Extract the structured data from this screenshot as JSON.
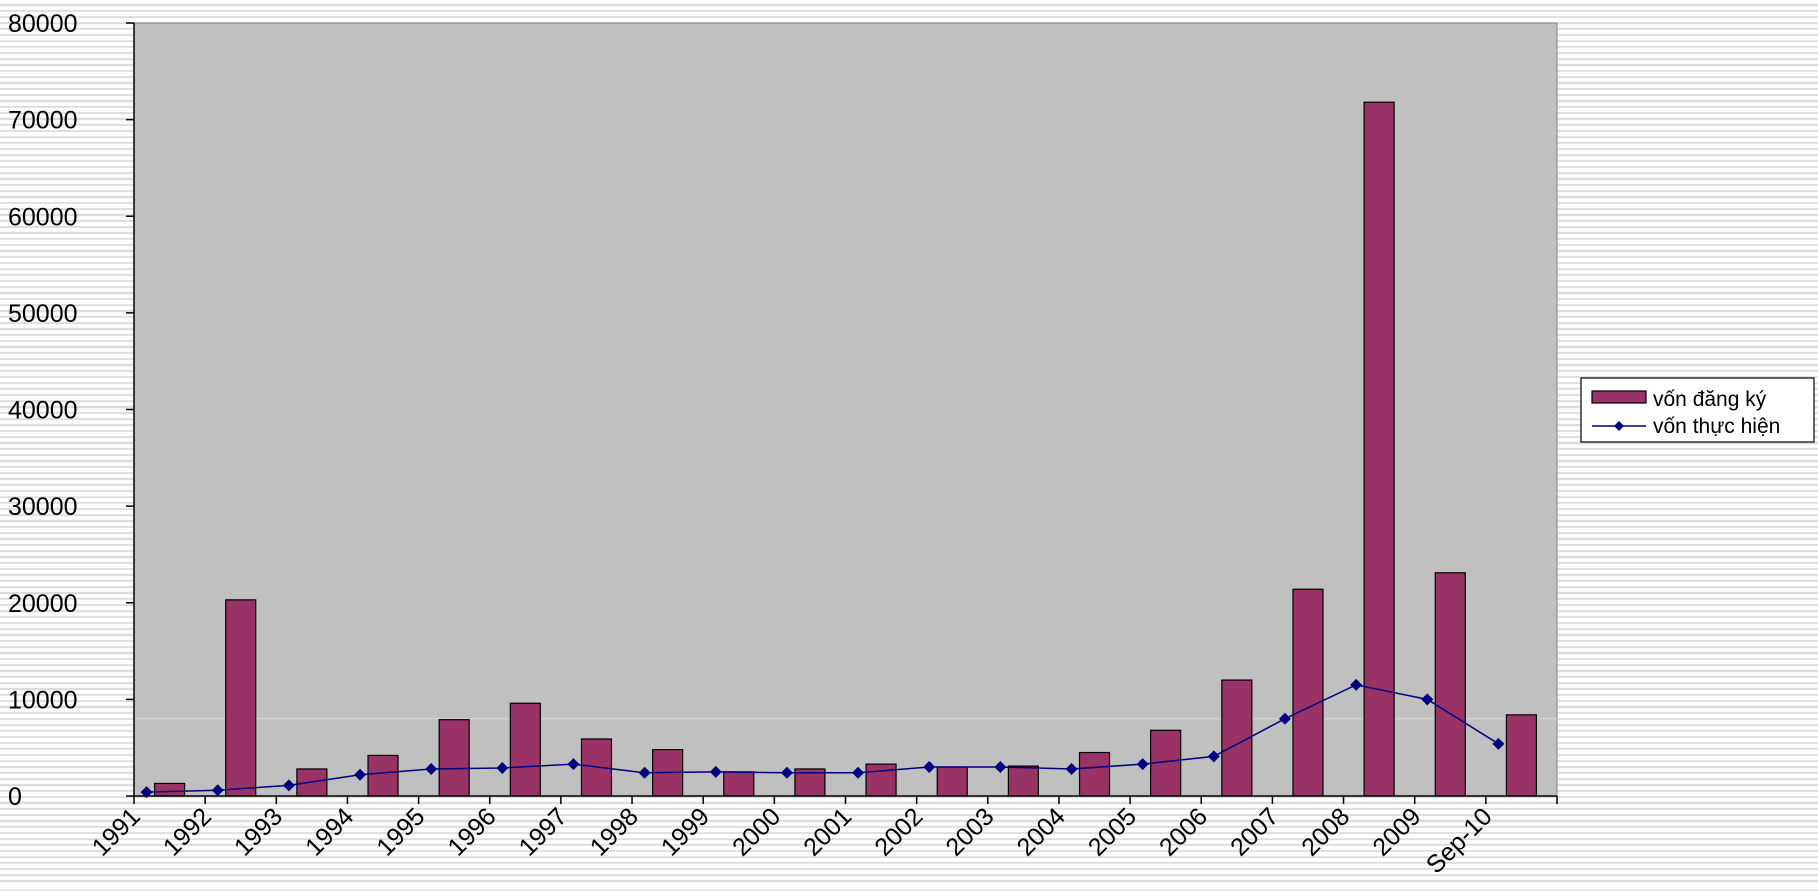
{
  "chart_data": {
    "type": "bar",
    "categories": [
      "1991",
      "1992",
      "1993",
      "1994",
      "1995",
      "1996",
      "1997",
      "1998",
      "1999",
      "2000",
      "2001",
      "2002",
      "2003",
      "2004",
      "2005",
      "2006",
      "2007",
      "2008",
      "2009",
      "Sep-10"
    ],
    "series": [
      {
        "name": "vốn đăng ký",
        "kind": "bar",
        "color": "#993366",
        "values": [
          1300,
          20300,
          2800,
          4200,
          7900,
          9600,
          5900,
          4800,
          2500,
          2800,
          3300,
          3000,
          3100,
          4500,
          6800,
          12000,
          21400,
          71800,
          23100,
          8400
        ]
      },
      {
        "name": "vốn thực hiện",
        "kind": "line",
        "color": "#000080",
        "values": [
          400,
          600,
          1100,
          2200,
          2800,
          2900,
          3300,
          2400,
          2500,
          2400,
          2400,
          3000,
          3000,
          2800,
          3300,
          4100,
          8000,
          11500,
          10000,
          5400
        ]
      }
    ],
    "ylim": [
      0,
      80000
    ],
    "yticks": [
      0,
      10000,
      20000,
      30000,
      40000,
      50000,
      60000,
      70000,
      80000
    ],
    "xlabel": "",
    "ylabel": "",
    "title": "",
    "legend_position": "right",
    "plot_background": "#c0c0c0"
  }
}
